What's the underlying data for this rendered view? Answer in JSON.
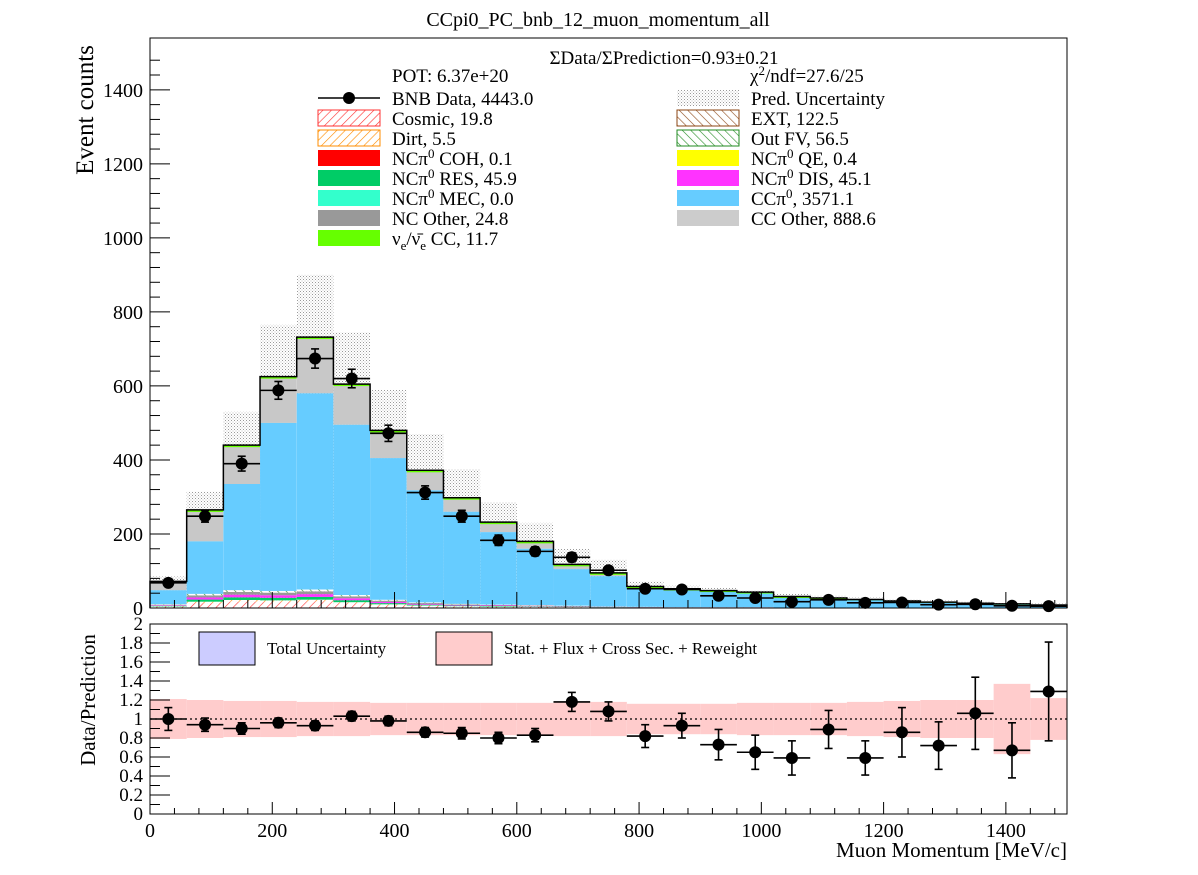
{
  "chart_data": [
    {
      "type": "bar",
      "title": "CCpi0_PC_bnb_12_muon_momentum_all",
      "ylabel": "Event counts",
      "xlabel": "",
      "xlim": [
        0,
        1500
      ],
      "ylim": [
        0,
        1540
      ],
      "yticks": [
        "0",
        "200",
        "400",
        "600",
        "800",
        "1000",
        "1200",
        "1400"
      ],
      "ratio_text": "ΣData/ΣPrediction=0.93±0.21",
      "pot_text": "POT: 6.37e+20",
      "chi2_text": "χ²/ndf=27.6/25",
      "bin_edges": [
        0,
        60,
        120,
        180,
        240,
        300,
        360,
        420,
        480,
        540,
        600,
        660,
        720,
        780,
        840,
        900,
        960,
        1020,
        1080,
        1140,
        1200,
        1260,
        1320,
        1380,
        1440,
        1500
      ],
      "legend": [
        {
          "label": "BNB Data, 4443.0",
          "style": "marker",
          "color": "#000000"
        },
        {
          "label": "Pred. Uncertainty",
          "style": "dots",
          "color": "#b0b0b0"
        },
        {
          "label": "Cosmic, 19.8",
          "style": "hatch",
          "color": "#ff3333"
        },
        {
          "label": "EXT, 122.5",
          "style": "hatch",
          "color": "#8b4513"
        },
        {
          "label": "Dirt, 5.5",
          "style": "hatch",
          "color": "#ff8c00"
        },
        {
          "label": "Out FV, 56.5",
          "style": "hatch",
          "color": "#228b22"
        },
        {
          "label": "NCπ⁰ COH,  0.1",
          "style": "fill",
          "color": "#ff0000"
        },
        {
          "label": "NCπ⁰ QE,  0.4",
          "style": "fill",
          "color": "#ffff00"
        },
        {
          "label": "NCπ⁰ RES,  45.9",
          "style": "fill",
          "color": "#00cc66"
        },
        {
          "label": "NCπ⁰ DIS,  45.1",
          "style": "fill",
          "color": "#ff33ff"
        },
        {
          "label": "NCπ⁰ MEC,  0.0",
          "style": "fill",
          "color": "#33ffcc"
        },
        {
          "label": "CCπ⁰, 3571.1",
          "style": "fill",
          "color": "#66ccff"
        },
        {
          "label": "NC Other, 24.8",
          "style": "fill",
          "color": "#999999"
        },
        {
          "label": "CC Other, 888.6",
          "style": "fill",
          "color": "#cccccc"
        },
        {
          "label": "νe/ν̄e CC, 11.7",
          "style": "fill",
          "color": "#66ff00"
        }
      ],
      "series": [
        {
          "name": "Pred. Uncertainty",
          "values": [
            85,
            315,
            530,
            765,
            900,
            745,
            590,
            470,
            375,
            285,
            230,
            160,
            130,
            72,
            60,
            55,
            48,
            38,
            33,
            28,
            24,
            20,
            17,
            14,
            12
          ]
        },
        {
          "name": "Total prediction",
          "values": [
            72,
            265,
            440,
            625,
            732,
            605,
            480,
            372,
            298,
            232,
            180,
            118,
            95,
            58,
            52,
            47,
            43,
            31,
            27,
            23,
            19,
            16,
            13,
            11,
            8
          ]
        },
        {
          "name": "CCπ⁰",
          "values": [
            48,
            180,
            335,
            500,
            580,
            495,
            405,
            318,
            260,
            205,
            160,
            105,
            86,
            53,
            47,
            43,
            39,
            27,
            24,
            21,
            17,
            14,
            11,
            9,
            7
          ]
        },
        {
          "name": "Low-level backgrounds",
          "values": [
            10,
            38,
            48,
            46,
            50,
            35,
            22,
            15,
            11,
            9,
            8,
            6,
            4,
            3,
            2,
            2,
            2,
            1,
            1,
            1,
            1,
            1,
            1,
            1,
            1
          ]
        },
        {
          "name": "BNB Data",
          "values": [
            68,
            248,
            390,
            588,
            674,
            620,
            472,
            312,
            248,
            183,
            153,
            137,
            102,
            52,
            50,
            33,
            27,
            17,
            22,
            14,
            15,
            9,
            10,
            6,
            5
          ],
          "errors": [
            8,
            16,
            20,
            24,
            26,
            25,
            22,
            18,
            16,
            14,
            12,
            12,
            10,
            7,
            7,
            6,
            5,
            4,
            5,
            4,
            4,
            3,
            3,
            3,
            2
          ]
        }
      ]
    },
    {
      "type": "scatter",
      "ylabel": "Data/Prediction",
      "xlabel": "Muon Momentum [MeV/c]",
      "xlim": [
        0,
        1500
      ],
      "ylim": [
        0,
        2
      ],
      "xticks": [
        "0",
        "200",
        "400",
        "600",
        "800",
        "1000",
        "1200",
        "1400"
      ],
      "yticks": [
        "0",
        "0.2",
        "0.4",
        "0.6",
        "0.8",
        "1",
        "1.2",
        "1.4",
        "1.6",
        "1.8",
        "2"
      ],
      "legend": [
        {
          "label": "Total Uncertainty",
          "color": "#ccccff"
        },
        {
          "label": "Stat. + Flux + Cross Sec. + Reweight",
          "color": "#ffcccc"
        }
      ],
      "band_low": [
        0.79,
        0.8,
        0.81,
        0.81,
        0.82,
        0.82,
        0.83,
        0.83,
        0.83,
        0.83,
        0.83,
        0.82,
        0.82,
        0.84,
        0.84,
        0.84,
        0.83,
        0.83,
        0.83,
        0.82,
        0.81,
        0.8,
        0.8,
        0.63,
        0.78
      ],
      "band_high": [
        1.21,
        1.2,
        1.19,
        1.19,
        1.18,
        1.18,
        1.17,
        1.17,
        1.17,
        1.17,
        1.17,
        1.18,
        1.18,
        1.16,
        1.16,
        1.16,
        1.17,
        1.17,
        1.17,
        1.18,
        1.19,
        1.2,
        1.2,
        1.37,
        1.22
      ],
      "x": [
        30,
        90,
        150,
        210,
        270,
        330,
        390,
        450,
        510,
        570,
        630,
        690,
        750,
        810,
        870,
        930,
        990,
        1050,
        1110,
        1170,
        1230,
        1290,
        1350,
        1410,
        1470
      ],
      "y": [
        1.0,
        0.94,
        0.9,
        0.96,
        0.93,
        1.03,
        0.98,
        0.86,
        0.85,
        0.8,
        0.83,
        1.18,
        1.08,
        0.82,
        0.93,
        0.73,
        0.65,
        0.59,
        0.89,
        0.59,
        0.86,
        0.72,
        1.06,
        0.67,
        1.29
      ],
      "yerr": [
        0.12,
        0.07,
        0.06,
        0.05,
        0.05,
        0.05,
        0.05,
        0.05,
        0.06,
        0.06,
        0.07,
        0.1,
        0.1,
        0.12,
        0.13,
        0.16,
        0.18,
        0.18,
        0.2,
        0.18,
        0.26,
        0.25,
        0.38,
        0.29,
        0.52
      ]
    }
  ]
}
